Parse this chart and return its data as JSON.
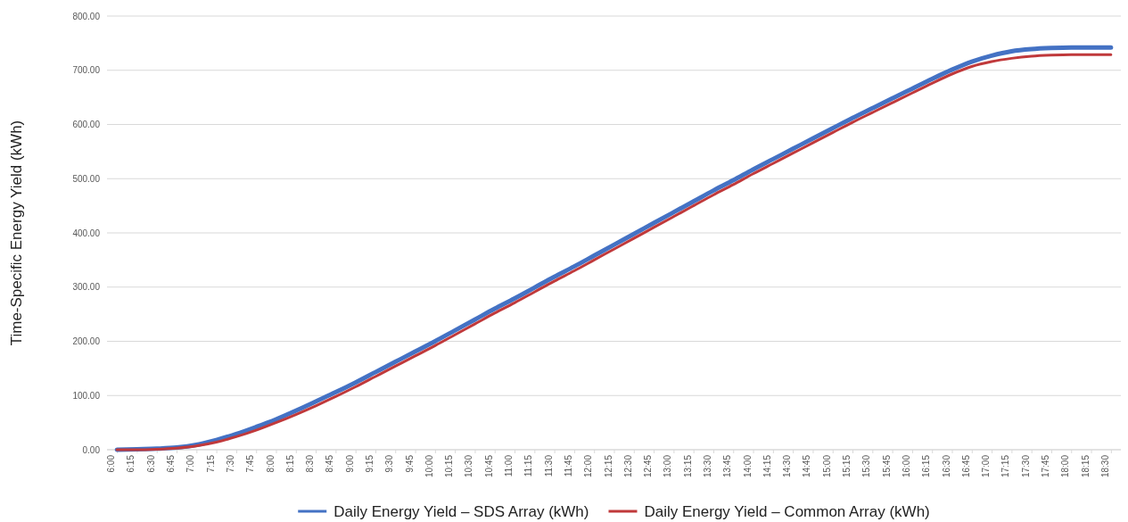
{
  "chart_data": {
    "type": "line",
    "ylabel": "Time-Specific Energy Yield (kWh)",
    "categories": [
      "6:00",
      "6:15",
      "6:30",
      "6:45",
      "7:00",
      "7:15",
      "7:30",
      "7:45",
      "8:00",
      "8:15",
      "8:30",
      "8:45",
      "9:00",
      "9:15",
      "9:30",
      "9:45",
      "10:00",
      "10:15",
      "10:30",
      "10:45",
      "11:00",
      "11:15",
      "11:30",
      "11:45",
      "12:00",
      "12:15",
      "12:30",
      "12:45",
      "13:00",
      "13:15",
      "13:30",
      "13:45",
      "14:00",
      "14:15",
      "14:30",
      "14:45",
      "15:00",
      "15:15",
      "15:30",
      "15:45",
      "16:00",
      "16:15",
      "16:30",
      "16:45",
      "17:00",
      "17:15",
      "17:30",
      "17:45",
      "18:00",
      "18:15",
      "18:30"
    ],
    "series": [
      {
        "name": "Daily Energy Yield – SDS Array (kWh)",
        "color": "#4472c4",
        "values": [
          0,
          1,
          2,
          4,
          9,
          18,
          29,
          42,
          56,
          72,
          89,
          106,
          124,
          143,
          162,
          181,
          200,
          220,
          240,
          260,
          279,
          299,
          319,
          338,
          358,
          378,
          398,
          418,
          438,
          458,
          478,
          497,
          517,
          536,
          555,
          574,
          593,
          612,
          630,
          648,
          666,
          684,
          701,
          716,
          727,
          735,
          739,
          741,
          742,
          742,
          742
        ]
      },
      {
        "name": "Daily Energy Yield – Common Array (kWh)",
        "color": "#c0393b",
        "values": [
          0,
          0,
          1,
          3,
          7,
          14,
          24,
          36,
          50,
          65,
          81,
          98,
          116,
          135,
          154,
          173,
          192,
          212,
          232,
          252,
          271,
          291,
          311,
          330,
          350,
          370,
          390,
          410,
          430,
          450,
          470,
          489,
          509,
          528,
          547,
          566,
          585,
          604,
          622,
          640,
          658,
          676,
          693,
          707,
          716,
          722,
          726,
          728,
          729,
          729,
          729
        ]
      }
    ],
    "ylim": [
      0,
      800
    ],
    "yticks": [
      {
        "value": 0,
        "label": "0.00"
      },
      {
        "value": 100,
        "label": "100.00"
      },
      {
        "value": 200,
        "label": "200.00"
      },
      {
        "value": 300,
        "label": "300.00"
      },
      {
        "value": 400,
        "label": "400.00"
      },
      {
        "value": 500,
        "label": "500.00"
      },
      {
        "value": 600,
        "label": "600.00"
      },
      {
        "value": 700,
        "label": "700.00"
      },
      {
        "value": 800,
        "label": "800.00"
      }
    ],
    "grid": "y",
    "legend": "bottom",
    "marker": "none",
    "line_style": "solid"
  }
}
